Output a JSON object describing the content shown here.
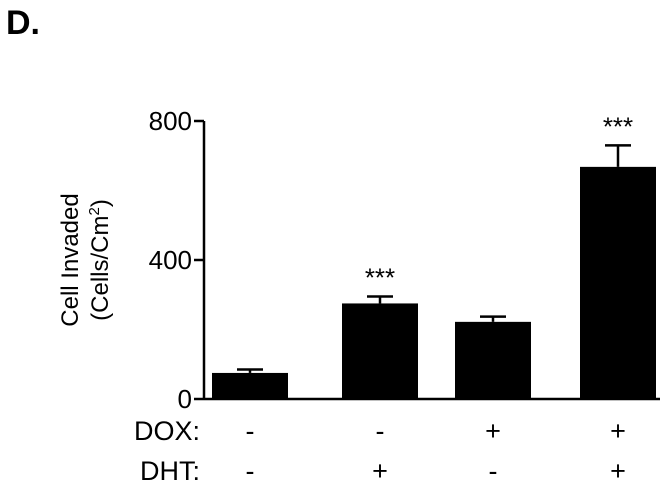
{
  "panel_label": "D.",
  "chart_data": {
    "type": "bar",
    "title": "",
    "ylabel_line1": "Cell Invaded",
    "ylabel_line2_prefix": "(Cells/Cm",
    "ylabel_superscript": "2",
    "ylabel_line2_suffix": ")",
    "ylim": [
      0,
      800
    ],
    "yticks": [
      0,
      400,
      800
    ],
    "ytick_labels": [
      "0",
      "400",
      "800"
    ],
    "grid": false,
    "bar_color": "#000000",
    "categories": [
      "- / -",
      "- / +",
      "+ / -",
      "+ / +"
    ],
    "values": [
      75,
      275,
      222,
      668
    ],
    "errors": [
      10,
      20,
      15,
      62
    ],
    "significance": [
      "",
      "***",
      "",
      "***"
    ],
    "condition_rows": [
      {
        "label": "DOX:",
        "marks": [
          "-",
          "-",
          "+",
          "+"
        ]
      },
      {
        "label": "DHT:",
        "marks": [
          "-",
          "+",
          "-",
          "+"
        ]
      }
    ]
  }
}
